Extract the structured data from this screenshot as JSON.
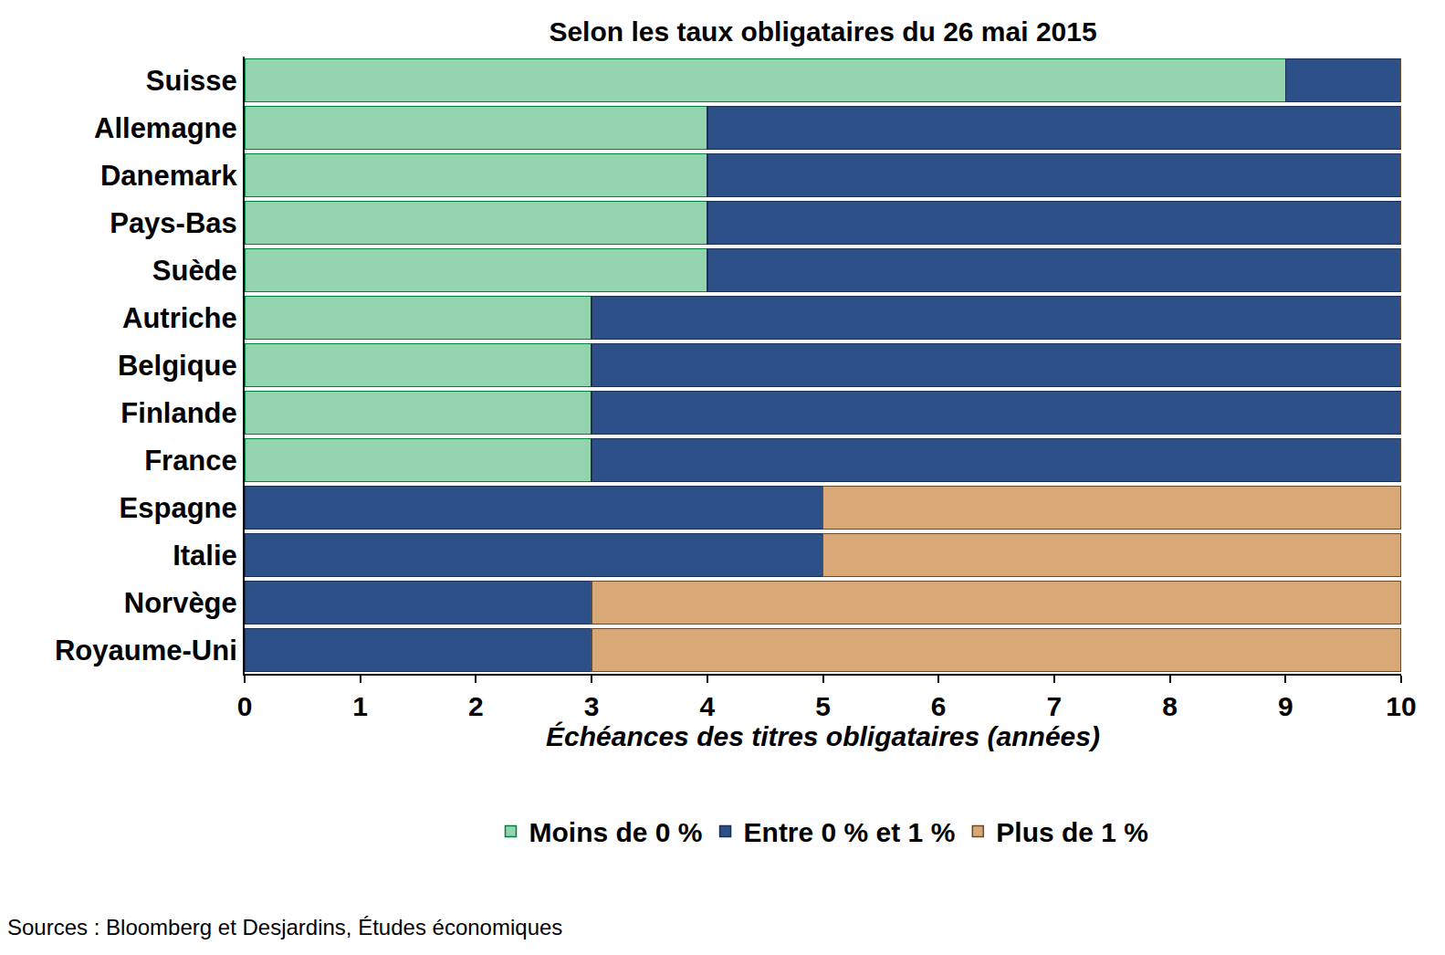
{
  "chart_data": {
    "type": "bar",
    "orientation": "horizontal",
    "stacked": true,
    "grid": false,
    "legend": "bottom",
    "title": "Selon les taux obligataires du 26 mai 2015",
    "x_label": "Échéances des titres obligataires (années)",
    "source": "Sources : Bloomberg et Desjardins, Études économiques",
    "categories": [
      "Suisse",
      "Allemagne",
      "Danemark",
      "Pays-Bas",
      "Suède",
      "Autriche",
      "Belgique",
      "Finlande",
      "France",
      "Espagne",
      "Italie",
      "Norvège",
      "Royaume-Uni"
    ],
    "xlim": [
      0,
      10
    ],
    "xticks": [
      0,
      1,
      2,
      3,
      4,
      5,
      6,
      7,
      8,
      9,
      10
    ],
    "series": [
      {
        "name": "Moins de 0 %",
        "color": "#93d3ae",
        "values": [
          9,
          4,
          4,
          4,
          4,
          3,
          3,
          3,
          3,
          0,
          0,
          0,
          0
        ]
      },
      {
        "name": "Entre 0 % et 1 %",
        "color": "#2e5088",
        "values": [
          1,
          6,
          6,
          6,
          6,
          7,
          7,
          7,
          7,
          5,
          5,
          3,
          3
        ]
      },
      {
        "name": "Plus de 1 %",
        "color": "#d9a877",
        "values": [
          0,
          0,
          0,
          0,
          0,
          0,
          0,
          0,
          0,
          5,
          5,
          7,
          7
        ]
      }
    ]
  }
}
